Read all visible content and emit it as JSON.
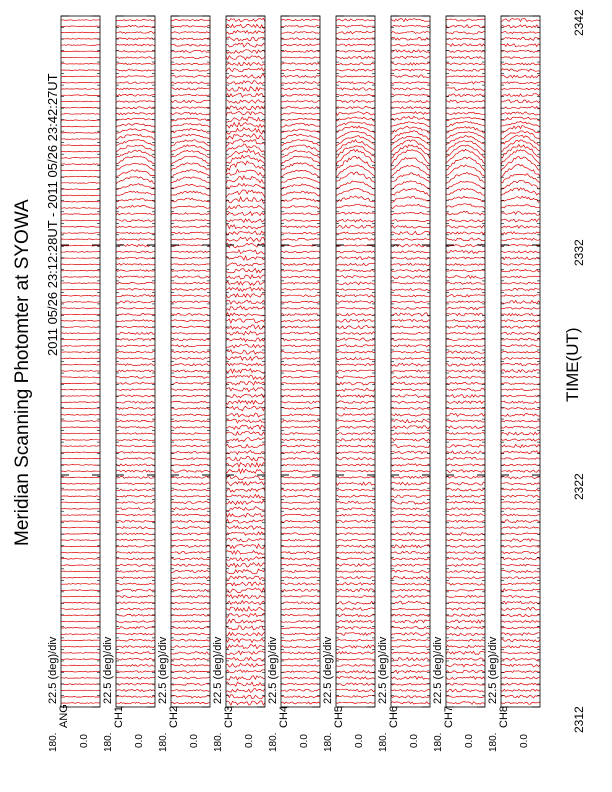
{
  "title": "Meridian Scanning Photomter at SYOWA",
  "time_range": "2011 05/26 23:12:28UT - 2011 05/26 23:42:27UT",
  "xlabel": "TIME(UT)",
  "scale_label": "22.5 (deg)/div",
  "colors": {
    "trace": "#e00000",
    "frame": "#000000",
    "background": "#ffffff"
  },
  "chart_data": {
    "type": "line",
    "x_ticks": [
      "2312",
      "2322",
      "2332",
      "2342"
    ],
    "x_range": [
      "2312",
      "2342"
    ],
    "y_range": [
      0.0,
      180.0
    ],
    "y_tick_labels": [
      "0.0",
      "180."
    ],
    "panels": [
      {
        "label": "ANG",
        "scale": "22.5 (deg)/div"
      },
      {
        "label": "CH1",
        "scale": "22.5 (deg)/div"
      },
      {
        "label": "CH2",
        "scale": "22.5 (deg)/div"
      },
      {
        "label": "CH3",
        "scale": "22.5 (deg)/div"
      },
      {
        "label": "CH4",
        "scale": "22.5 (deg)/div"
      },
      {
        "label": "CH5",
        "scale": "22.5 (deg)/div"
      },
      {
        "label": "CH6",
        "scale": "22.5 (deg)/div"
      },
      {
        "label": "CH7",
        "scale": "22.5 (deg)/div"
      },
      {
        "label": "CH8",
        "scale": "22.5 (deg)/div"
      }
    ]
  }
}
